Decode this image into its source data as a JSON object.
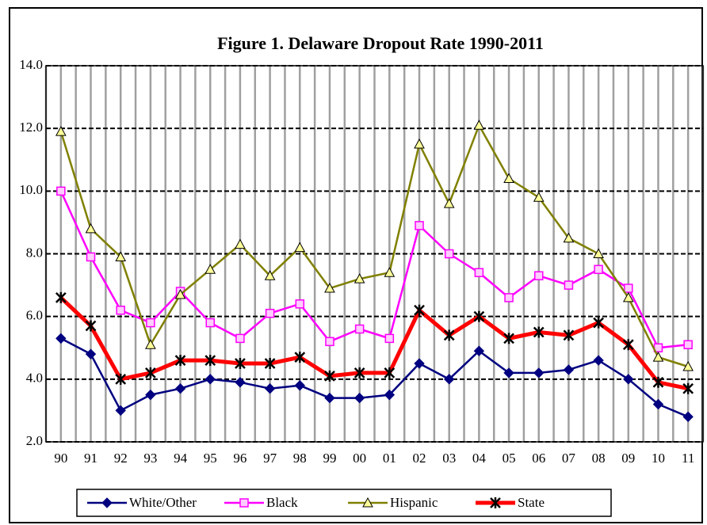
{
  "chart_data": {
    "type": "line",
    "title": "Figure 1.  Delaware Dropout Rate 1990-2011",
    "categories": [
      "90",
      "91",
      "92",
      "93",
      "94",
      "95",
      "96",
      "97",
      "98",
      "99",
      "00",
      "01",
      "02",
      "03",
      "04",
      "05",
      "06",
      "07",
      "08",
      "09",
      "10",
      "11"
    ],
    "series": [
      {
        "name": "White/Other",
        "color": "#000080",
        "marker": "diamond",
        "values": [
          5.3,
          4.8,
          3.0,
          3.5,
          3.7,
          4.0,
          3.9,
          3.7,
          3.8,
          3.4,
          3.4,
          3.5,
          4.5,
          4.0,
          4.9,
          4.2,
          4.2,
          4.3,
          4.6,
          4.0,
          3.2,
          2.8
        ]
      },
      {
        "name": "Black",
        "color": "#ff00ff",
        "marker": "square",
        "values": [
          10.0,
          7.9,
          6.2,
          5.8,
          6.8,
          5.8,
          5.3,
          6.1,
          6.4,
          5.2,
          5.6,
          5.3,
          8.9,
          8.0,
          7.4,
          6.6,
          7.3,
          7.0,
          7.5,
          6.9,
          5.0,
          5.1
        ]
      },
      {
        "name": "Hispanic",
        "color": "#808000",
        "marker": "triangle",
        "values": [
          11.9,
          8.8,
          7.9,
          5.1,
          6.7,
          7.5,
          8.3,
          7.3,
          8.2,
          6.9,
          7.2,
          7.4,
          11.5,
          9.6,
          12.1,
          10.4,
          9.8,
          8.5,
          8.0,
          6.6,
          4.7,
          4.4
        ]
      },
      {
        "name": "State",
        "color": "#ff0000",
        "marker": "x",
        "values": [
          6.6,
          5.7,
          4.0,
          4.2,
          4.6,
          4.6,
          4.5,
          4.5,
          4.7,
          4.1,
          4.2,
          4.2,
          6.2,
          5.4,
          6.0,
          5.3,
          5.5,
          5.4,
          5.8,
          5.1,
          3.9,
          3.7
        ]
      }
    ],
    "ylim": [
      2,
      14
    ],
    "yticks": [
      {
        "value": 2,
        "label": "2.0"
      },
      {
        "value": 4,
        "label": "4.0"
      },
      {
        "value": 6,
        "label": "6.0"
      },
      {
        "value": 8,
        "label": "8.0"
      },
      {
        "value": 10,
        "label": "10.0"
      },
      {
        "value": 12,
        "label": "12.0"
      },
      {
        "value": 14,
        "label": "14.0"
      }
    ],
    "grid": true,
    "legend": "bottom"
  }
}
